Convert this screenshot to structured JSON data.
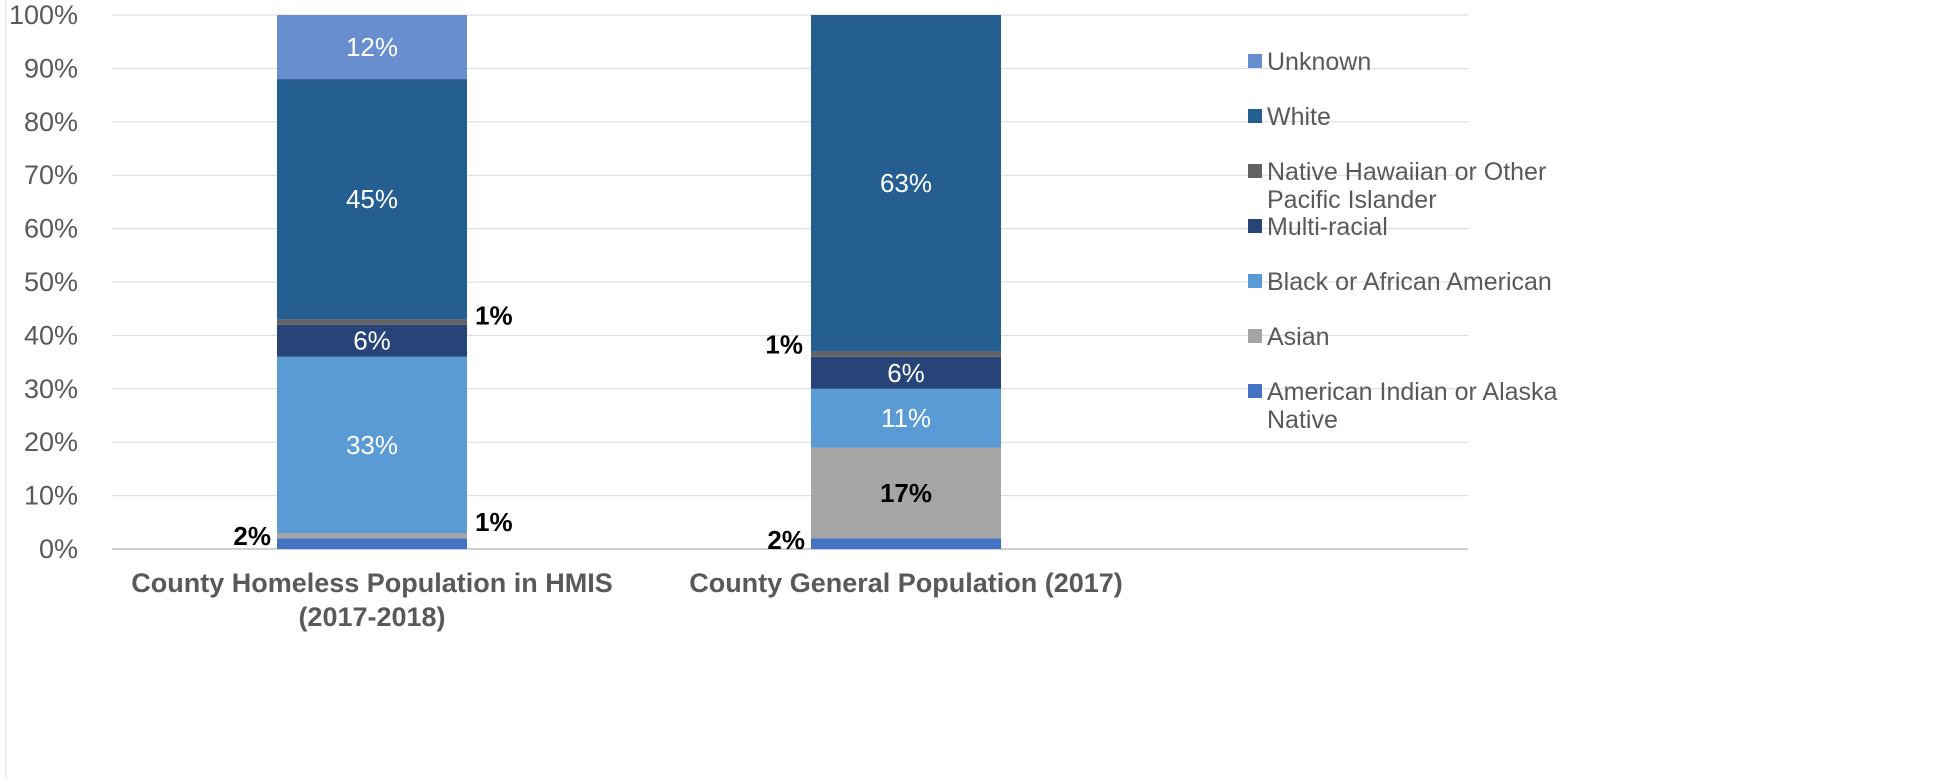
{
  "chart_data": {
    "type": "bar",
    "stacked": true,
    "categories": [
      "County Homeless Population in HMIS (2017-2018)",
      "County General Population (2017)"
    ],
    "category_lines": [
      [
        "County Homeless Population in HMIS",
        "(2017-2018)"
      ],
      [
        "County General Population (2017)"
      ]
    ],
    "series": [
      {
        "name": "American Indian or Alaska Native",
        "legend_lines": [
          "American Indian or Alaska",
          "Native"
        ],
        "color": "#4472C4",
        "values": [
          2,
          2
        ],
        "labels": [
          "2%",
          "2%"
        ],
        "label_style": "outside-left"
      },
      {
        "name": "Asian",
        "legend_lines": [
          "Asian"
        ],
        "color": "#A5A5A5",
        "values": [
          1,
          17
        ],
        "labels": [
          "1%",
          "17%"
        ],
        "label_style": "mixed"
      },
      {
        "name": "Black or African American",
        "legend_lines": [
          "Black or African American"
        ],
        "color": "#5B9BD5",
        "values": [
          33,
          11
        ],
        "labels": [
          "33%",
          "11%"
        ],
        "label_style": "inside"
      },
      {
        "name": "Multi-racial",
        "legend_lines": [
          "Multi-racial"
        ],
        "color": "#264478",
        "values": [
          6,
          6
        ],
        "labels": [
          "6%",
          "6%"
        ],
        "label_style": "inside"
      },
      {
        "name": "Native Hawaiian or Other Pacific Islander",
        "legend_lines": [
          "Native Hawaiian or Other",
          "Pacific Islander"
        ],
        "color": "#636363",
        "values": [
          1,
          1
        ],
        "labels": [
          "1%",
          "1%"
        ],
        "label_style": "outside"
      },
      {
        "name": "White",
        "legend_lines": [
          "White"
        ],
        "color": "#255E91",
        "values": [
          45,
          63
        ],
        "labels": [
          "45%",
          "63%"
        ],
        "label_style": "inside"
      },
      {
        "name": "Unknown",
        "legend_lines": [
          "Unknown"
        ],
        "color": "#698ED0",
        "values": [
          12,
          0
        ],
        "labels": [
          "12%",
          ""
        ],
        "label_style": "inside"
      }
    ],
    "y_ticks": [
      "0%",
      "10%",
      "20%",
      "30%",
      "40%",
      "50%",
      "60%",
      "70%",
      "80%",
      "90%",
      "100%"
    ],
    "ylim": [
      0,
      100
    ],
    "grid": true,
    "legend_position": "right",
    "title": "",
    "xlabel": "",
    "ylabel": ""
  }
}
